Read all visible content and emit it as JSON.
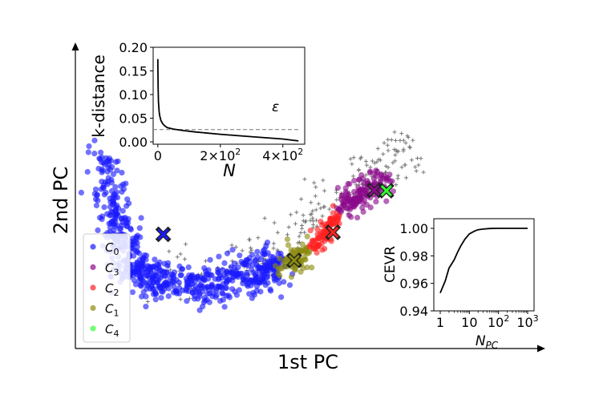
{
  "chart_data": [
    {
      "type": "scatter",
      "xlabel": "1st PC",
      "ylabel": "2nd PC",
      "legend": {
        "placement": "lower-left",
        "entries": [
          {
            "label": "C",
            "sub": "0",
            "color": "#1a1aff"
          },
          {
            "label": "C",
            "sub": "3",
            "color": "#8b0a8b"
          },
          {
            "label": "C",
            "sub": "2",
            "color": "#ff2020"
          },
          {
            "label": "C",
            "sub": "1",
            "color": "#8b8b10"
          },
          {
            "label": "C",
            "sub": "4",
            "color": "#33ff33"
          }
        ]
      },
      "noise_color": "#777777",
      "centroid_color": "#222222",
      "clusters": [
        {
          "name": "C0",
          "color": "#1a1aff",
          "path": [
            [
              0.0,
              0.82
            ],
            [
              0.018,
              0.62
            ],
            [
              0.035,
              0.48
            ],
            [
              0.055,
              0.34
            ],
            [
              0.08,
              0.25
            ],
            [
              0.12,
              0.21
            ],
            [
              0.18,
              0.19
            ],
            [
              0.25,
              0.18
            ],
            [
              0.32,
              0.2
            ],
            [
              0.38,
              0.22
            ],
            [
              0.43,
              0.25
            ],
            [
              0.47,
              0.29
            ]
          ],
          "spread": 0.05,
          "count": 700
        },
        {
          "name": "C1",
          "color": "#8b8b10",
          "path": [
            [
              0.49,
              0.28
            ],
            [
              0.54,
              0.33
            ]
          ],
          "spread": 0.03,
          "count": 90
        },
        {
          "name": "C2",
          "color": "#ff2020",
          "path": [
            [
              0.57,
              0.36
            ],
            [
              0.6,
              0.44
            ],
            [
              0.63,
              0.52
            ]
          ],
          "spread": 0.022,
          "count": 90
        },
        {
          "name": "C3",
          "color": "#8b0a8b",
          "path": [
            [
              0.65,
              0.56
            ],
            [
              0.7,
              0.64
            ],
            [
              0.76,
              0.7
            ]
          ],
          "spread": 0.035,
          "count": 150
        },
        {
          "name": "C4",
          "color": "#33ff33",
          "path": [
            [
              0.76,
              0.65
            ]
          ],
          "spread": 0.0,
          "count": 1
        }
      ],
      "noise": {
        "path": [
          [
            0.16,
            0.24
          ],
          [
            0.3,
            0.25
          ],
          [
            0.42,
            0.31
          ],
          [
            0.52,
            0.44
          ],
          [
            0.62,
            0.56
          ],
          [
            0.7,
            0.7
          ],
          [
            0.78,
            0.8
          ],
          [
            0.83,
            0.86
          ]
        ],
        "spread": 0.06,
        "count": 220
      },
      "centroids": [
        {
          "cluster": "C0",
          "x": 0.16,
          "y": 0.43,
          "color": "#1a1aff"
        },
        {
          "cluster": "C1",
          "x": 0.515,
          "y": 0.3,
          "color": "#8b8b10"
        },
        {
          "cluster": "C2",
          "x": 0.62,
          "y": 0.44,
          "color": "#ff2020"
        },
        {
          "cluster": "C3",
          "x": 0.732,
          "y": 0.65,
          "color": "#8b0a8b"
        },
        {
          "cluster": "C4",
          "x": 0.765,
          "y": 0.648,
          "color": "#33ff33"
        }
      ]
    },
    {
      "type": "line",
      "ylabel": "k-distance",
      "xlabel": "N",
      "annotation": "ε",
      "xlim": [
        -15,
        470
      ],
      "ylim": [
        -0.005,
        0.2
      ],
      "yticks": [
        "0.00",
        "0.05",
        "0.10",
        "0.15",
        "0.20"
      ],
      "xticks": [
        {
          "value": 0,
          "label": "0"
        },
        {
          "value": 200,
          "label": "2×10",
          "exp": "2"
        },
        {
          "value": 400,
          "label": "4×10",
          "exp": "2"
        }
      ],
      "threshold": 0.026,
      "x": [
        0,
        1,
        2,
        4,
        6,
        10,
        15,
        20,
        30,
        50,
        80,
        120,
        200,
        300,
        400,
        450
      ],
      "y": [
        0.175,
        0.115,
        0.085,
        0.065,
        0.055,
        0.045,
        0.039,
        0.035,
        0.03,
        0.027,
        0.024,
        0.021,
        0.016,
        0.011,
        0.006,
        0.002
      ]
    },
    {
      "type": "line",
      "ylabel": "CEVR",
      "xlabel": "N",
      "xlabel_sub": "PC",
      "xscale": "log",
      "xlim": [
        1,
        1000
      ],
      "ylim": [
        0.94,
        1.0
      ],
      "yticks": [
        "0.94",
        "0.96",
        "0.98",
        "1.00"
      ],
      "xticks": [
        {
          "value": 1,
          "label": "1"
        },
        {
          "value": 10,
          "label": "10"
        },
        {
          "value": 100,
          "label": "10",
          "exp": "2"
        },
        {
          "value": 1000,
          "label": "10",
          "exp": "3"
        }
      ],
      "x": [
        1,
        1.5,
        2,
        3,
        4,
        5,
        7,
        10,
        15,
        20,
        30,
        50,
        100,
        1000
      ],
      "y": [
        0.953,
        0.962,
        0.971,
        0.977,
        0.983,
        0.987,
        0.992,
        0.996,
        0.998,
        0.999,
        0.9995,
        0.9999,
        1.0,
        1.0
      ]
    }
  ]
}
